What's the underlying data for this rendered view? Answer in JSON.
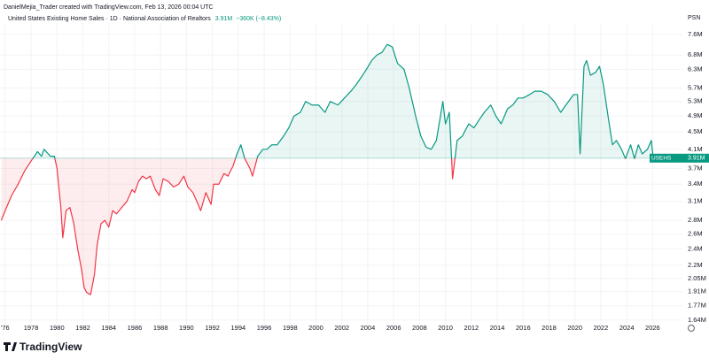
{
  "chart_data": {
    "type": "line",
    "credit": "DanielMejia_Trader created with TradingView.com, Feb 13, 2026 00:04 UTC",
    "title": "United States Existing Home Sales · 1D · National Association of Realtors",
    "symbol": "USEHS",
    "unit_label": "PSN",
    "price": 3910000,
    "price_label": "3.91M",
    "change_label": "−360K (−8.43%)",
    "brand": "TradingView",
    "log_scale": true,
    "grid": true,
    "color_up": "#089981",
    "color_down": "#f23645",
    "xlim": [
      1975.6,
      2028.3
    ],
    "ylim": [
      1600000,
      8000000
    ],
    "xticks": [
      {
        "value": 1976,
        "label": "'76"
      },
      1978,
      1980,
      1982,
      1984,
      1986,
      1988,
      1990,
      1992,
      1994,
      1996,
      1998,
      2000,
      2002,
      2004,
      2006,
      2008,
      2010,
      2012,
      2014,
      2016,
      2018,
      2020,
      2022,
      2024,
      2026
    ],
    "yticks": [
      {
        "value": 7600000,
        "label": "7.6M"
      },
      {
        "value": 6800000,
        "label": "6.8M"
      },
      {
        "value": 6300000,
        "label": "6.3M"
      },
      {
        "value": 5700000,
        "label": "5.7M"
      },
      {
        "value": 5300000,
        "label": "5.3M"
      },
      {
        "value": 4900000,
        "label": "4.9M"
      },
      {
        "value": 4500000,
        "label": "4.5M"
      },
      {
        "value": 4100000,
        "label": "4.1M"
      },
      {
        "value": 3700000,
        "label": "3.7M"
      },
      {
        "value": 3400000,
        "label": "3.4M"
      },
      {
        "value": 3100000,
        "label": "3.1M"
      },
      {
        "value": 2800000,
        "label": "2.8M"
      },
      {
        "value": 2600000,
        "label": "2.6M"
      },
      {
        "value": 2400000,
        "label": "2.4M"
      },
      {
        "value": 2200000,
        "label": "2.2M"
      },
      {
        "value": 2050000,
        "label": "2.05M"
      },
      {
        "value": 1910000,
        "label": "1.91M"
      },
      {
        "value": 1770000,
        "label": "1.77M"
      },
      {
        "value": 1640000,
        "label": "1.64M"
      }
    ],
    "x": [
      1975.7,
      1976.0,
      1976.5,
      1977.0,
      1977.5,
      1978.0,
      1978.5,
      1978.8,
      1979.0,
      1979.5,
      1979.8,
      1980.0,
      1980.3,
      1980.45,
      1980.7,
      1981.0,
      1981.3,
      1981.6,
      1981.9,
      1982.1,
      1982.3,
      1982.6,
      1982.9,
      1983.1,
      1983.4,
      1983.7,
      1984.0,
      1984.3,
      1984.6,
      1985.0,
      1985.4,
      1985.8,
      1986.0,
      1986.3,
      1986.6,
      1986.9,
      1987.2,
      1987.6,
      1987.9,
      1988.2,
      1988.6,
      1989.0,
      1989.4,
      1989.8,
      1990.1,
      1990.5,
      1990.9,
      1991.1,
      1991.5,
      1991.9,
      1992.1,
      1992.5,
      1992.9,
      1993.2,
      1993.6,
      1993.9,
      1994.2,
      1994.5,
      1994.9,
      1995.1,
      1995.5,
      1995.9,
      1996.2,
      1996.6,
      1997.0,
      1997.5,
      1997.9,
      1998.3,
      1998.8,
      1999.2,
      1999.7,
      2000.2,
      2000.7,
      2001.1,
      2001.7,
      2002.2,
      2002.7,
      2003.1,
      2003.6,
      2003.9,
      2004.3,
      2004.7,
      2005.1,
      2005.5,
      2005.9,
      2006.3,
      2006.8,
      2007.2,
      2007.7,
      2008.1,
      2008.5,
      2008.9,
      2009.3,
      2009.8,
      2010.0,
      2010.3,
      2010.55,
      2010.9,
      2011.3,
      2011.8,
      2012.2,
      2012.6,
      2013.0,
      2013.5,
      2013.9,
      2014.3,
      2014.8,
      2015.2,
      2015.6,
      2016.0,
      2016.5,
      2016.9,
      2017.4,
      2017.9,
      2018.4,
      2018.9,
      2019.3,
      2019.9,
      2020.2,
      2020.4,
      2020.7,
      2020.9,
      2021.2,
      2021.6,
      2021.9,
      2022.2,
      2022.6,
      2022.9,
      2023.2,
      2023.6,
      2023.9,
      2024.3,
      2024.6,
      2024.9,
      2025.2,
      2025.6,
      2025.9,
      2026.05
    ],
    "values": [
      2800000,
      2950000,
      3200000,
      3400000,
      3650000,
      3850000,
      4050000,
      3950000,
      4100000,
      3950000,
      3950000,
      3700000,
      3000000,
      2550000,
      2950000,
      3000000,
      2750000,
      2400000,
      2150000,
      1950000,
      1900000,
      1880000,
      2100000,
      2450000,
      2750000,
      2800000,
      2700000,
      2950000,
      2900000,
      3000000,
      3100000,
      3300000,
      3250000,
      3450000,
      3550000,
      3500000,
      3550000,
      3300000,
      3200000,
      3500000,
      3450000,
      3350000,
      3400000,
      3550000,
      3350000,
      3250000,
      3050000,
      2950000,
      3250000,
      3050000,
      3400000,
      3400000,
      3600000,
      3550000,
      3750000,
      4000000,
      4200000,
      3900000,
      3700000,
      3550000,
      3950000,
      4100000,
      4100000,
      4200000,
      4200000,
      4400000,
      4600000,
      4900000,
      5000000,
      5300000,
      5200000,
      5200000,
      5000000,
      5300000,
      5200000,
      5400000,
      5600000,
      5800000,
      6100000,
      6300000,
      6600000,
      6800000,
      6900000,
      7200000,
      7100000,
      6500000,
      6300000,
      5700000,
      4900000,
      4400000,
      4150000,
      4100000,
      4300000,
      5300000,
      4700000,
      5000000,
      3500000,
      4300000,
      4400000,
      4700000,
      4600000,
      4800000,
      5000000,
      5200000,
      4900000,
      4700000,
      5100000,
      5200000,
      5400000,
      5400000,
      5500000,
      5600000,
      5600000,
      5500000,
      5300000,
      5000000,
      5200000,
      5500000,
      5500000,
      4000000,
      6400000,
      6600000,
      6100000,
      6200000,
      6400000,
      5800000,
      4800000,
      4200000,
      4300000,
      4100000,
      3900000,
      4200000,
      3900000,
      4200000,
      4000000,
      4100000,
      4300000,
      3910000
    ]
  }
}
